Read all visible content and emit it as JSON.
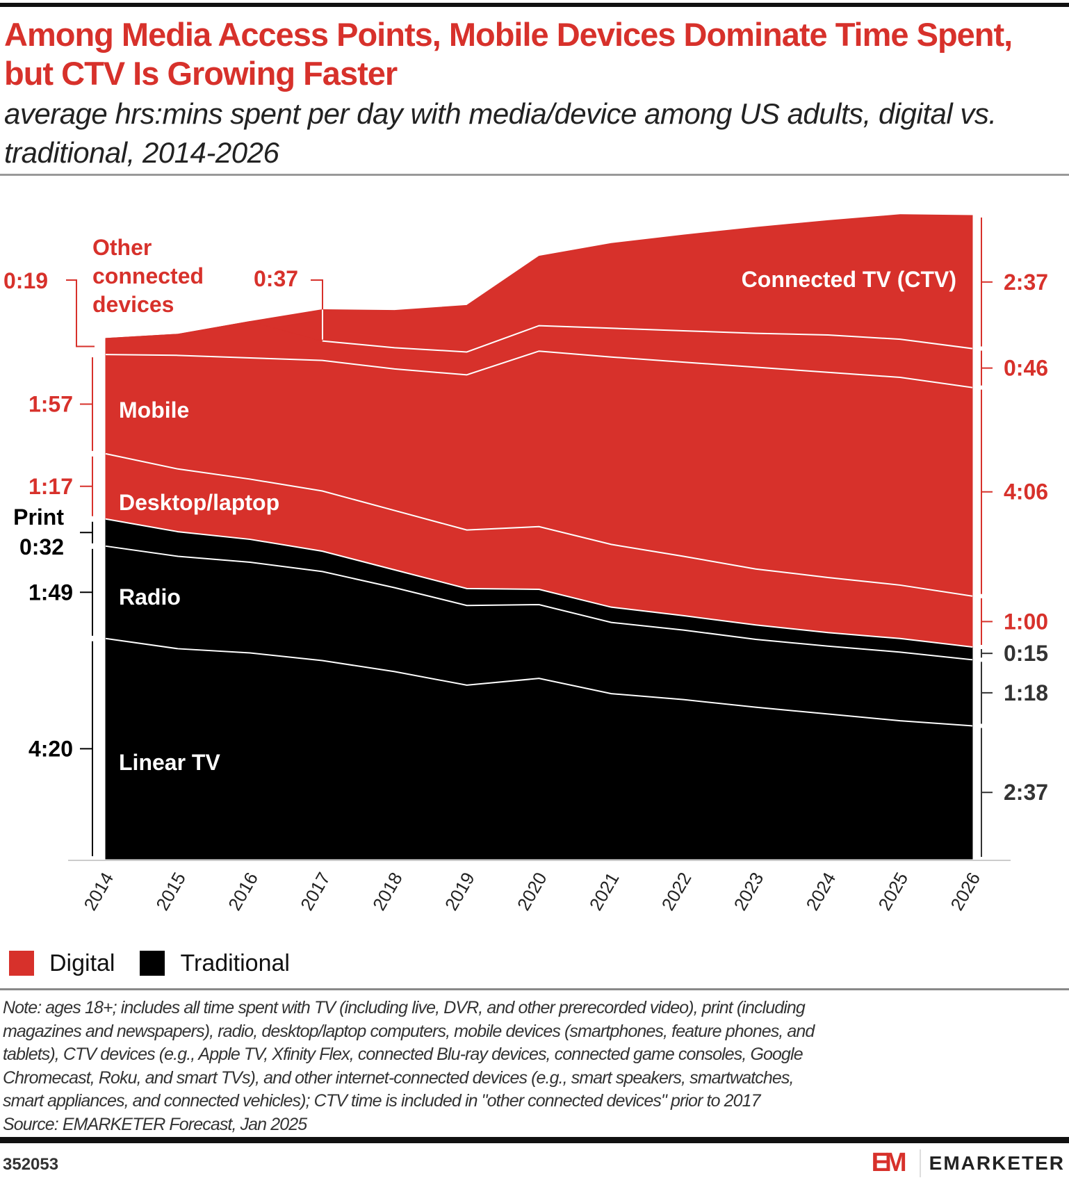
{
  "title": "Among Media Access Points, Mobile Devices Dominate Time Spent, but CTV Is Growing Faster",
  "subtitle": "average hrs:mins spent per day with media/device among US adults, digital vs. traditional, 2014-2026",
  "colors": {
    "digital": "#d7312b",
    "traditional": "#000000",
    "title": "#d7312b"
  },
  "chart_data": {
    "type": "area",
    "stacked": true,
    "unit": "minutes per day",
    "x": [
      "2014",
      "2015",
      "2016",
      "2017",
      "2018",
      "2019",
      "2020",
      "2021",
      "2022",
      "2023",
      "2024",
      "2025",
      "2026"
    ],
    "series": [
      {
        "name": "Linear TV",
        "group": "Traditional",
        "start_label": "4:20",
        "end_label": "2:37",
        "values": [
          260,
          248,
          243,
          234,
          221,
          205,
          213,
          195,
          188,
          179,
          171,
          163,
          157
        ]
      },
      {
        "name": "Radio",
        "group": "Traditional",
        "start_label": "1:49",
        "end_label": "1:18",
        "values": [
          109,
          109,
          107,
          105,
          99,
          94,
          87,
          84,
          82,
          80,
          80,
          81,
          78
        ]
      },
      {
        "name": "Print",
        "group": "Traditional",
        "start_label": "0:32",
        "end_label": "0:15",
        "values": [
          32,
          29,
          27,
          24,
          21,
          20,
          18,
          18,
          17,
          17,
          16,
          16,
          15
        ]
      },
      {
        "name": "Desktop/laptop",
        "group": "Digital",
        "start_label": "1:17",
        "end_label": "1:00",
        "values": [
          77,
          74,
          71,
          71,
          70,
          69,
          74,
          74,
          70,
          66,
          65,
          63,
          60
        ]
      },
      {
        "name": "Mobile",
        "group": "Digital",
        "start_label": "1:57",
        "end_label": "4:06",
        "values": [
          117,
          134,
          143,
          154,
          167,
          183,
          207,
          221,
          229,
          238,
          242,
          245,
          246
        ]
      },
      {
        "name": "Other connected devices",
        "group": "Digital",
        "start_label": "0:19",
        "end_label": "0:46",
        "values": [
          19,
          25,
          43,
          23,
          25,
          27,
          30,
          34,
          37,
          40,
          44,
          45,
          46
        ]
      },
      {
        "name": "Connected TV (CTV)",
        "group": "Digital",
        "start_label": "0:37",
        "end_label": "2:37",
        "values": [
          0,
          0,
          0,
          37,
          44,
          55,
          82,
          100,
          113,
          125,
          135,
          147,
          157
        ]
      }
    ],
    "legend": [
      {
        "label": "Digital",
        "color": "#d7312b"
      },
      {
        "label": "Traditional",
        "color": "#000000"
      }
    ],
    "legend_placement": "bottom-left",
    "grid": false
  },
  "notes": [
    "Note: ages 18+; includes all time spent with TV (including live, DVR, and other prerecorded video), print (including",
    "magazines and newspapers), radio, desktop/laptop computers, mobile devices (smartphones, feature phones, and",
    "tablets), CTV devices (e.g., Apple TV, Xfinity Flex, connected Blu-ray devices, connected game consoles, Google",
    "Chromecast, Roku, and smart TVs), and other internet-connected devices (e.g., smart speakers, smartwatches,",
    "smart appliances, and connected vehicles); CTV time is included in \"other connected devices\" prior to 2017",
    "Source: EMARKETER Forecast, Jan 2025"
  ],
  "footer": {
    "id": "352053",
    "brand": "EMARKETER",
    "logo_mark": "EM"
  }
}
